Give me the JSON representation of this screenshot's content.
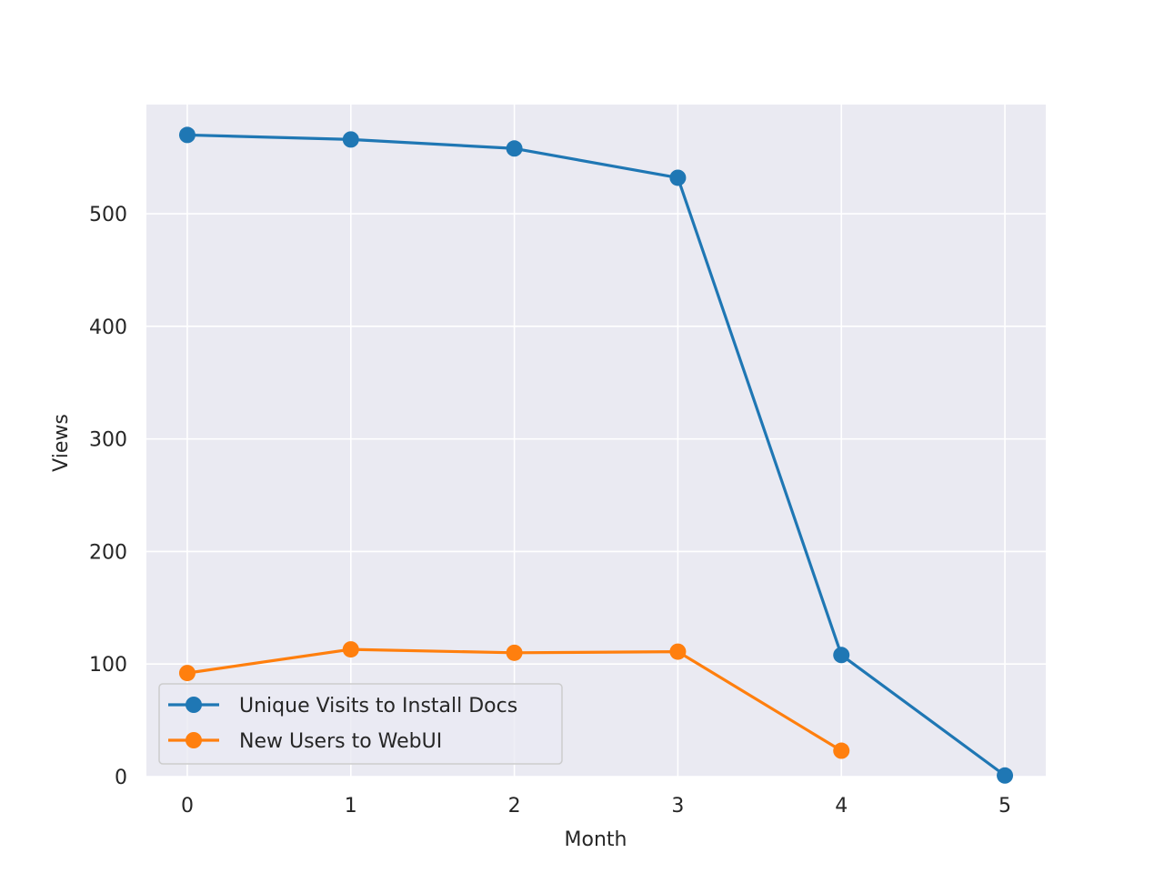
{
  "chart_data": {
    "type": "line",
    "title": "",
    "xlabel": "Month",
    "ylabel": "Views",
    "x": [
      0,
      1,
      2,
      3,
      4,
      5
    ],
    "xlim": [
      -0.25,
      5.25
    ],
    "ylim": [
      0,
      597
    ],
    "xticks": [
      "0",
      "1",
      "2",
      "3",
      "4",
      "5"
    ],
    "yticks": [
      "0",
      "100",
      "200",
      "300",
      "400",
      "500"
    ],
    "grid": true,
    "legend_position": "lower-left",
    "series": [
      {
        "name": "Unique Visits to Install Docs",
        "color": "#1f77b4",
        "x": [
          0,
          1,
          2,
          3,
          4,
          5
        ],
        "values": [
          570,
          566,
          558,
          532,
          108,
          1
        ]
      },
      {
        "name": "New Users to WebUI",
        "color": "#ff7f0e",
        "x": [
          0,
          1,
          2,
          3,
          4
        ],
        "values": [
          92,
          113,
          110,
          111,
          23
        ]
      }
    ]
  }
}
